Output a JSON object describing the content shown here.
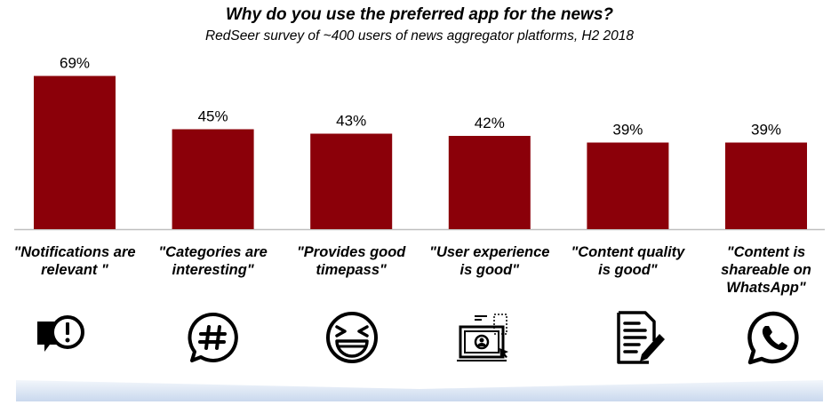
{
  "title": "Why do you use the preferred app for the news?",
  "subtitle": "RedSeer survey of ~400 users of news aggregator platforms, H2 2018",
  "colors": {
    "bar": "#8B0009",
    "axis": "#BFBFBF",
    "band": "#DCE6F2"
  },
  "chart_data": {
    "type": "bar",
    "title": "Why do you use the preferred app for the news?",
    "subtitle": "RedSeer survey of ~400 users of news aggregator platforms, H2 2018",
    "categories": [
      "\"Notifications are relevant \"",
      "\"Categories are interesting\"",
      "\"Provides good timepass\"",
      "\"User experience is good\"",
      "\"Content quality is good\"",
      "\"Content is shareable on WhatsApp\""
    ],
    "values": [
      69,
      45,
      43,
      42,
      39,
      39
    ],
    "value_labels": [
      "69%",
      "45%",
      "43%",
      "42%",
      "39%",
      "39%"
    ],
    "ylim": [
      0,
      100
    ],
    "grid": false,
    "legend": "none"
  },
  "category_lines": [
    "\"Notifications are\nrelevant \"",
    "\"Categories are\ninteresting\"",
    "\"Provides good\ntimepass\"",
    "\"User experience\nis good\"",
    "\"Content quality\nis good\"",
    "\"Content is\nshareable on\nWhatsApp\""
  ],
  "icons": [
    "notification-alert-icon",
    "hashtag-chat-icon",
    "laughing-face-icon",
    "user-experience-screen-icon",
    "document-edit-icon",
    "whatsapp-icon"
  ]
}
